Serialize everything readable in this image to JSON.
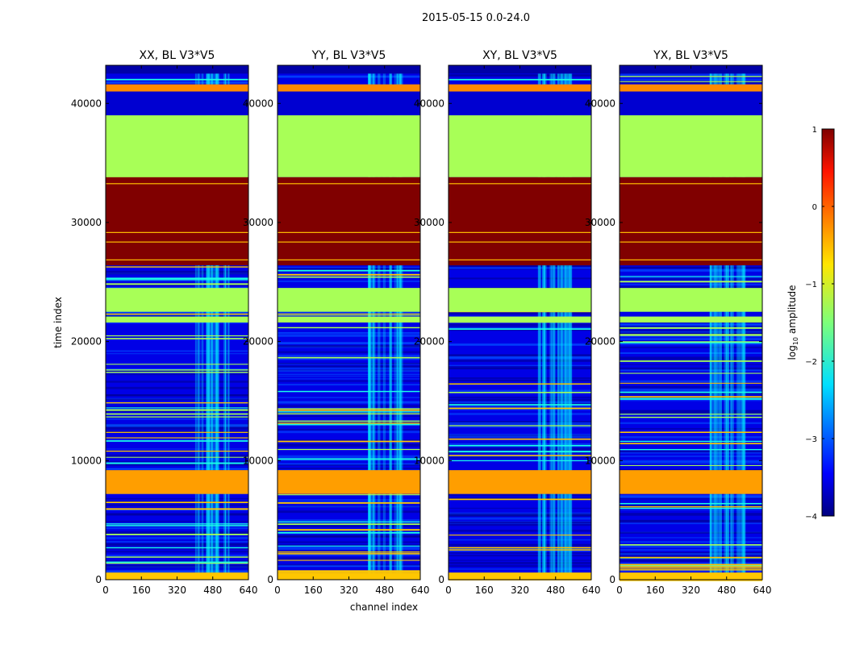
{
  "figure": {
    "suptitle": "2015-05-15 0.0-24.0"
  },
  "chart_data": {
    "type": "heatmap",
    "ylabel": "time index",
    "xlabel": "channel index",
    "x_range": [
      0,
      640
    ],
    "y_range": [
      0,
      43200
    ],
    "x_ticks": [
      0,
      160,
      320,
      480,
      640
    ],
    "y_ticks": [
      0,
      10000,
      20000,
      30000,
      40000
    ],
    "panels": [
      {
        "title": "XX, BL V3*V5"
      },
      {
        "title": "YY, BL V3*V5"
      },
      {
        "title": "XY, BL V3*V5"
      },
      {
        "title": "YX, BL V3*V5"
      }
    ],
    "colormap": "jet",
    "colorbar": {
      "label_prefix": "log",
      "label_sub": "10",
      "label_suffix": " amplitude",
      "range": [
        -4,
        1
      ],
      "ticks": [
        -4,
        -3,
        -2,
        -1,
        0,
        1
      ]
    },
    "value_bands": [
      {
        "y0": 42500,
        "y1": 43200,
        "log10_amplitude": -3.8
      },
      {
        "y0": 41000,
        "y1": 41600,
        "log10_amplitude": -0.3
      },
      {
        "y0": 39000,
        "y1": 41000,
        "log10_amplitude": -3.6
      },
      {
        "y0": 33800,
        "y1": 39000,
        "log10_amplitude": -1.3
      },
      {
        "y0": 26400,
        "y1": 33800,
        "log10_amplitude": 1.0
      },
      {
        "y0": 22500,
        "y1": 24500,
        "log10_amplitude": -1.3
      },
      {
        "y0": 21600,
        "y1": 22100,
        "log10_amplitude": -1.3
      },
      {
        "y0": 7200,
        "y1": 9200,
        "log10_amplitude": -0.4
      },
      {
        "y0": 0,
        "y1": 600,
        "log10_amplitude": -0.6
      }
    ],
    "noise_floor_log10_amplitude": -3.5
  }
}
